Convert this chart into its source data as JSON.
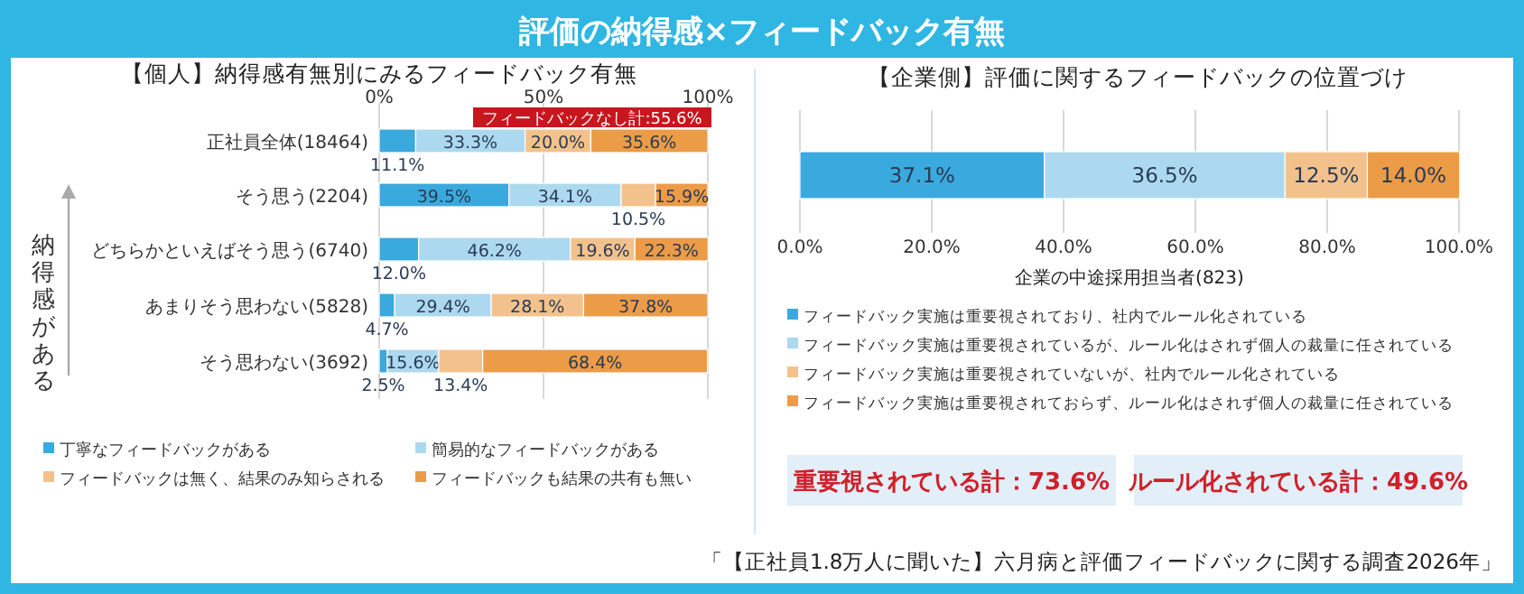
{
  "chart_data": [
    {
      "type": "bar",
      "orientation": "horizontal",
      "stacked": true,
      "title": "【個人】納得感有無別にみるフィードバック有無",
      "ylabel": "納得感がある",
      "categories": [
        "正社員全体(18464)",
        "そう思う(2204)",
        "どちらかといえばそう思う(6740)",
        "あまりそう思わない(5828)",
        "そう思わない(3692)"
      ],
      "series": [
        {
          "name": "丁寧なフィードバックがある",
          "color": "#3aa9dd",
          "values": [
            11.1,
            39.5,
            12.0,
            4.7,
            2.5
          ],
          "value_labels": [
            "11.1%",
            "39.5%",
            "12.0%",
            "4.7%",
            "2.5%"
          ]
        },
        {
          "name": "簡易的なフィードバックがある",
          "color": "#acd9ef",
          "values": [
            33.3,
            34.1,
            46.2,
            29.4,
            15.6
          ],
          "value_labels": [
            "33.3%",
            "34.1%",
            "46.2%",
            "29.4%",
            "15.6%"
          ]
        },
        {
          "name": "フィードバックは無く、結果のみ知らされる",
          "color": "#f3c28c",
          "values": [
            20.0,
            10.5,
            19.6,
            28.1,
            13.4
          ],
          "value_labels": [
            "20.0%",
            "10.5%",
            "19.6%",
            "28.1%",
            "13.4%"
          ]
        },
        {
          "name": "フィードバックも結果の共有も無い",
          "color": "#ec9b47",
          "values": [
            35.6,
            15.9,
            22.3,
            37.8,
            68.4
          ],
          "value_labels": [
            "35.6%",
            "15.9%",
            "22.3%",
            "37.8%",
            "68.4%"
          ]
        }
      ],
      "xlim": [
        0,
        100
      ],
      "xticks": [
        {
          "value": 0,
          "label": "0%"
        },
        {
          "value": 50,
          "label": "50%"
        },
        {
          "value": 100,
          "label": "100%"
        }
      ],
      "grid": "x",
      "legend": "bottom",
      "annotations": [
        "評価の納得感×フィードバック有無",
        "フィードバックなし計:55.6%"
      ]
    },
    {
      "type": "bar",
      "orientation": "horizontal",
      "stacked": true,
      "title": "【企業側】評価に関するフィードバックの位置づけ",
      "xlabel": "企業の中途採用担当者(823)",
      "categories": [
        null
      ],
      "series": [
        {
          "name": "フィードバック実施は重要視されており、社内でルール化されている",
          "color": "#3aa9dd",
          "values": [
            37.1
          ],
          "value_labels": [
            "37.1%"
          ]
        },
        {
          "name": "フィードバック実施は重要視されているが、ルール化はされず個人の裁量に任されている",
          "color": "#acd9ef",
          "values": [
            36.5
          ],
          "value_labels": [
            "36.5%"
          ]
        },
        {
          "name": "フィードバック実施は重要視されていないが、社内でルール化されている",
          "color": "#f3c28c",
          "values": [
            12.5
          ],
          "value_labels": [
            "12.5%"
          ]
        },
        {
          "name": "フィードバック実施は重要視されておらず、ルール化はされず個人の裁量に任されている",
          "color": "#ec9b47",
          "values": [
            14.0
          ],
          "value_labels": [
            "14.0%"
          ]
        }
      ],
      "xlim": [
        0,
        100
      ],
      "xticks": [
        {
          "value": 0,
          "label": "0.0%"
        },
        {
          "value": 20,
          "label": "20.0%"
        },
        {
          "value": 40,
          "label": "40.0%"
        },
        {
          "value": 60,
          "label": "60.0%"
        },
        {
          "value": 80,
          "label": "80.0%"
        },
        {
          "value": 100,
          "label": "100.0%"
        }
      ],
      "grid": "x",
      "legend": "bottom",
      "annotations": [
        "重要視されている計：73.6%",
        "ルール化されている計：49.6%",
        "「【正社員1.8万人に聞いた】六月病と評価フィードバックに関する調査2026年」"
      ]
    }
  ]
}
